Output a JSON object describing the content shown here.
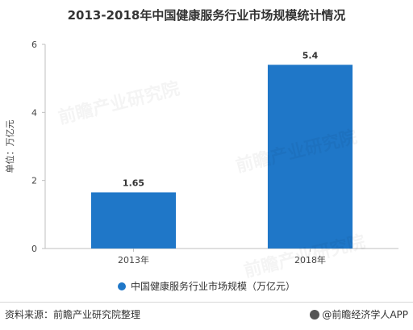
{
  "title": "2013-2018年中国健康服务行业市场规模统计情况",
  "legend": {
    "label": "中国健康服务行业市场规模（万亿元）"
  },
  "source": "资料来源：前瞻产业研究院整理",
  "brand": "@前瞻经济学人APP",
  "watermark": "前瞻产业研究院",
  "colors": {
    "bar": "#1f77c8",
    "axis": "#bfbfbf"
  },
  "chart_data": {
    "type": "bar",
    "title": "2013-2018年中国健康服务行业市场规模统计情况",
    "categories": [
      "2013年",
      "2018年"
    ],
    "series": [
      {
        "name": "中国健康服务行业市场规模（万亿元）",
        "values": [
          1.65,
          5.4
        ]
      }
    ],
    "data_labels": [
      "1.65",
      "5.4"
    ],
    "ylabel": "单位：万亿元",
    "ylim": [
      0,
      6
    ],
    "yticks": [
      0,
      2,
      4,
      6
    ],
    "grid": false,
    "legend": "bottom"
  }
}
